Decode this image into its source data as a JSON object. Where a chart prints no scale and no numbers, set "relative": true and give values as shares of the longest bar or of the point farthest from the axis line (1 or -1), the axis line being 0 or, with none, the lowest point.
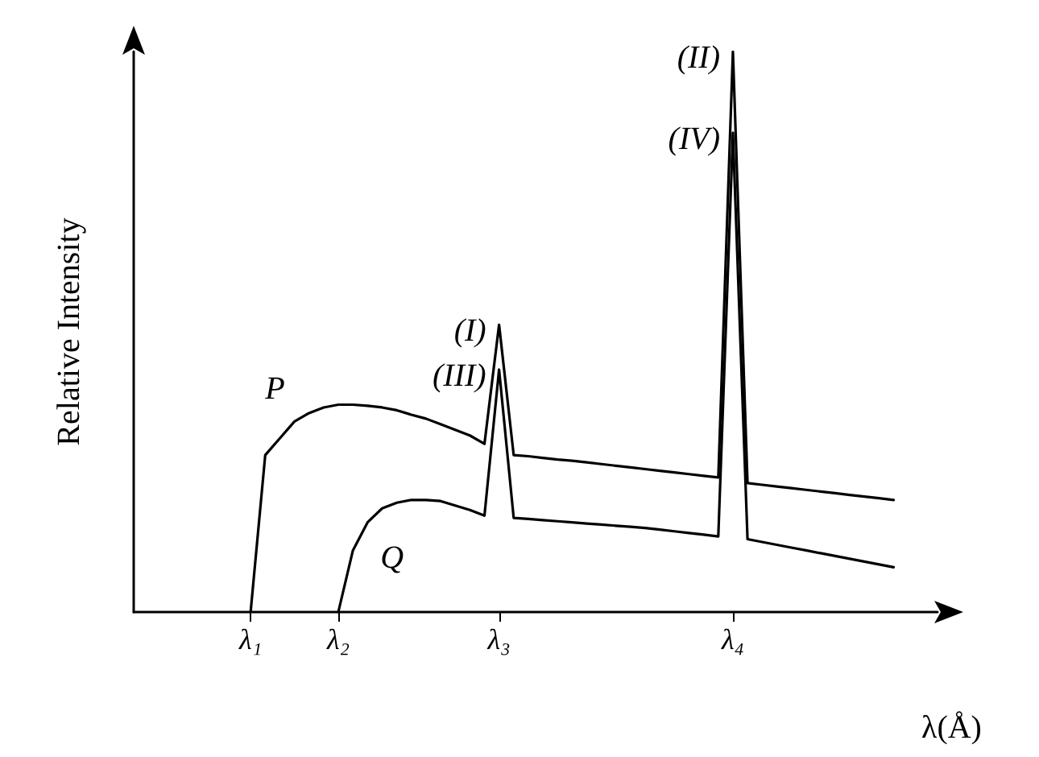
{
  "chart_data": {
    "type": "line",
    "relative": true,
    "xlabel": "λ(Å)",
    "ylabel": "Relative Intensity",
    "categories": [
      null,
      null,
      null,
      null,
      null,
      null,
      null,
      null,
      "λ₁",
      null,
      null,
      null,
      null,
      null,
      "λ₂",
      null,
      null,
      null,
      null,
      null,
      null,
      null,
      null,
      null,
      null,
      "λ₃",
      null,
      null,
      null,
      null,
      null,
      null,
      null,
      null,
      null,
      null,
      null,
      null,
      null,
      null,
      null,
      "λ₄",
      null,
      null,
      null,
      null,
      null,
      null,
      null,
      null,
      null,
      null,
      null,
      null,
      null,
      null
    ],
    "grid": false,
    "legend": false,
    "marker": "none",
    "line_style": "solid",
    "tick_labels": "x",
    "annotations": [
      "(I)",
      "(II)",
      "(III)",
      "(IV)"
    ],
    "series": [
      {
        "name": "P",
        "color": "#000000",
        "values": [
          null,
          null,
          null,
          null,
          null,
          null,
          null,
          null,
          0,
          0.28,
          0.31,
          0.34,
          0.355,
          0.365,
          0.37,
          0.37,
          0.368,
          0.365,
          0.36,
          0.352,
          0.345,
          0.335,
          0.325,
          0.315,
          0.3,
          0.5125,
          0.28,
          0.278,
          0.275,
          0.272,
          0.27,
          0.267,
          0.264,
          0.261,
          0.258,
          0.255,
          0.252,
          0.249,
          0.246,
          0.243,
          0.24,
          1,
          0.23,
          0.227,
          0.224,
          0.221,
          0.218,
          0.215,
          0.212,
          0.209,
          0.206,
          0.203,
          0.2,
          null,
          null,
          null
        ]
      },
      {
        "name": "Q",
        "color": "#000000",
        "values": [
          null,
          null,
          null,
          null,
          null,
          null,
          null,
          null,
          null,
          null,
          null,
          null,
          null,
          null,
          0,
          0.11,
          0.16,
          0.185,
          0.195,
          0.2,
          0.2,
          0.198,
          0.19,
          0.182,
          0.172,
          0.4325,
          0.168,
          0.166,
          0.164,
          0.162,
          0.16,
          0.158,
          0.156,
          0.154,
          0.152,
          0.15,
          0.147,
          0.144,
          0.141,
          0.138,
          0.135,
          0.855,
          0.13,
          0.125,
          0.12,
          0.115,
          0.11,
          0.105,
          0.1,
          0.095,
          0.09,
          0.085,
          0.08,
          null,
          null,
          null
        ]
      }
    ]
  }
}
